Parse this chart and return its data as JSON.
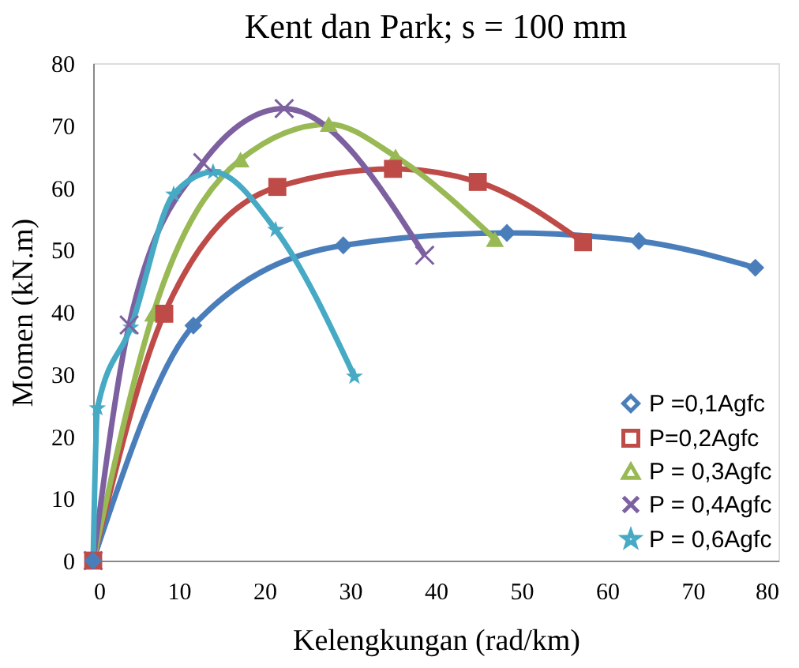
{
  "chart_data": {
    "type": "line",
    "title": "Kent dan Park; s = 100 mm",
    "xlabel": "Kelengkungan (rad/km)",
    "ylabel": "Momen (kN.m)",
    "xlim": [
      0,
      80
    ],
    "ylim": [
      0,
      80
    ],
    "xticks": [
      0,
      10,
      20,
      30,
      40,
      50,
      60,
      70,
      80
    ],
    "yticks": [
      0,
      10,
      20,
      30,
      40,
      50,
      60,
      70,
      80
    ],
    "grid": false,
    "legend": "bottom right",
    "series": [
      {
        "name": "P =0,1Agfc",
        "color": "#4a7ebb",
        "marker": "diamond",
        "x": [
          0,
          11.7,
          29.2,
          48.3,
          63.7,
          77.3
        ],
        "values": [
          0,
          37.8,
          50.7,
          52.7,
          51.4,
          47.1
        ]
      },
      {
        "name": "P=0,2Agfc",
        "color": "#be4b48",
        "marker": "square",
        "x": [
          0,
          8.3,
          21.5,
          35,
          44.9,
          57.2
        ],
        "values": [
          0,
          39.7,
          60.1,
          63,
          60.9,
          51.2
        ]
      },
      {
        "name": "P = 0,3Agfc",
        "color": "#98b954",
        "marker": "triangle",
        "x": [
          0,
          7,
          17.2,
          27.5,
          35.3,
          46.9
        ],
        "values": [
          0,
          39.7,
          64.5,
          70.2,
          65,
          51.7
        ]
      },
      {
        "name": "P = 0,4Agfc",
        "color": "#7d60a0",
        "marker": "cross",
        "x": [
          0,
          4.2,
          12.8,
          22.3,
          38.7
        ],
        "values": [
          0,
          37.9,
          64,
          72.7,
          49.1
        ]
      },
      {
        "name": "P = 0,6Agfc",
        "color": "#46aac5",
        "marker": "star",
        "x": [
          0,
          0.5,
          4.4,
          9.4,
          14,
          21.3,
          30.5
        ],
        "values": [
          0,
          24.5,
          37.5,
          58.9,
          62.5,
          53.2,
          29.6
        ]
      }
    ]
  }
}
